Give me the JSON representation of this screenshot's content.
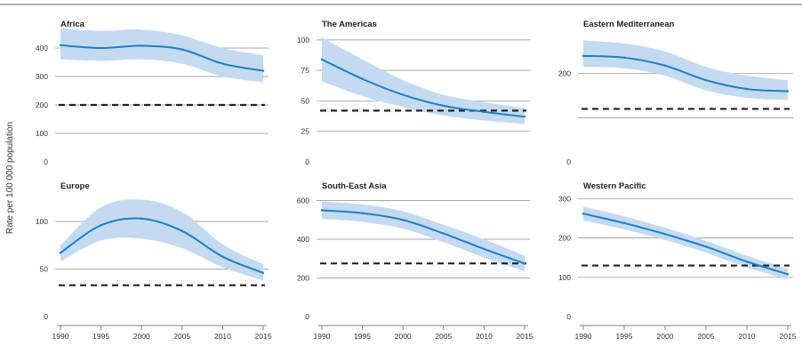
{
  "chart_data": {
    "type": "line",
    "ylabel": "Rate per 100 000 population",
    "line_color": "#1f7fc4",
    "band_color": "#c3daf0",
    "target_color": "#222222",
    "x": [
      1990,
      1995,
      2000,
      2005,
      2010,
      2015
    ],
    "x_tick_labels": [
      "1990",
      "1995",
      "2000",
      "2005",
      "2010",
      "2015"
    ],
    "panels": [
      {
        "title": "Africa",
        "yticks": [
          0,
          100,
          200,
          300,
          400
        ],
        "ytick_labels": [
          "0",
          "100",
          "200",
          "300",
          "400"
        ],
        "ylim": [
          0,
          450
        ],
        "values": [
          410,
          400,
          408,
          395,
          345,
          320
        ],
        "lower": [
          360,
          355,
          360,
          345,
          300,
          280
        ],
        "upper": [
          470,
          460,
          465,
          445,
          400,
          375
        ],
        "target": 200
      },
      {
        "title": "The Americas",
        "yticks": [
          0,
          25,
          50,
          75,
          100
        ],
        "ytick_labels": [
          "0",
          "25",
          "50",
          "75",
          "100"
        ],
        "ylim": [
          0,
          105
        ],
        "values": [
          84,
          68,
          55,
          46,
          41,
          37
        ],
        "lower": [
          66,
          54,
          45,
          38,
          34,
          31
        ],
        "upper": [
          102,
          84,
          67,
          55,
          49,
          44
        ],
        "target": 42
      },
      {
        "title": "Eastern Mediterranean",
        "yticks": [
          0,
          100,
          200
        ],
        "ytick_labels": [
          "0",
          "",
          "200"
        ],
        "ylim": [
          0,
          290
        ],
        "values": [
          240,
          236,
          218,
          185,
          165,
          160
        ],
        "lower": [
          215,
          212,
          195,
          162,
          145,
          140
        ],
        "upper": [
          275,
          268,
          250,
          215,
          195,
          185
        ],
        "target": 120
      },
      {
        "title": "Europe",
        "yticks": [
          0,
          50,
          100
        ],
        "ytick_labels": [
          "0",
          "50",
          "100"
        ],
        "ylim": [
          0,
          128
        ],
        "values": [
          67,
          96,
          103,
          90,
          63,
          46
        ],
        "lower": [
          58,
          80,
          82,
          72,
          52,
          38
        ],
        "upper": [
          75,
          115,
          123,
          110,
          76,
          55
        ],
        "target": 33
      },
      {
        "title": "South-East Asia",
        "yticks": [
          0,
          200,
          400,
          600
        ],
        "ytick_labels": [
          "0",
          "200",
          "400",
          "600"
        ],
        "ylim": [
          0,
          630
        ],
        "values": [
          550,
          535,
          500,
          430,
          350,
          275
        ],
        "lower": [
          505,
          490,
          455,
          385,
          305,
          235
        ],
        "upper": [
          595,
          580,
          545,
          475,
          400,
          315
        ],
        "target": 275
      },
      {
        "title": "Western Pacific",
        "yticks": [
          0,
          100,
          200,
          300
        ],
        "ytick_labels": [
          "0",
          "100",
          "200",
          "300"
        ],
        "ylim": [
          0,
          310
        ],
        "values": [
          262,
          238,
          210,
          178,
          140,
          108
        ],
        "lower": [
          245,
          222,
          195,
          163,
          125,
          95
        ],
        "upper": [
          280,
          255,
          226,
          193,
          155,
          122
        ],
        "target": 130
      }
    ]
  }
}
